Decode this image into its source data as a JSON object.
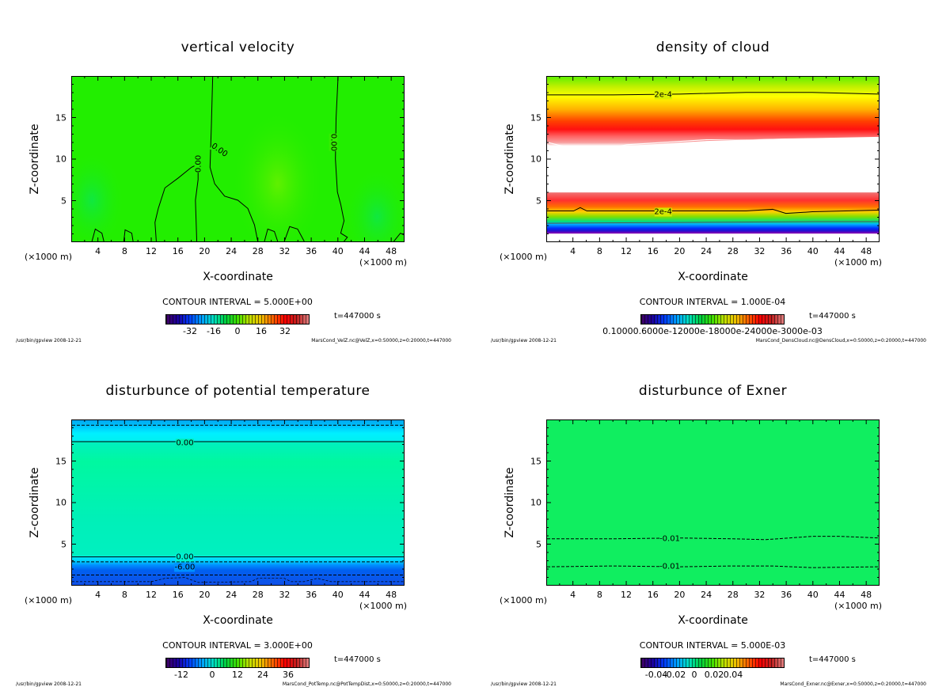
{
  "common": {
    "ylabel": "Z-coordinate",
    "xlabel": "X-coordinate",
    "xunit_left": "(×1000 m)",
    "xunit_right": "(×1000 m)",
    "footer_left": "/usr/bin/gpview  2008-12-21",
    "time": "t=447000  s"
  },
  "panels": [
    {
      "title": "vertical velocity",
      "contour_interval": "CONTOUR INTERVAL = 5.000E+00",
      "footer_right": "MarsCond_VelZ.nc@VelZ,x=0:50000,z=0:20000,t=447000",
      "colorbar_labels": [
        "-32",
        "-16",
        "0",
        "16",
        "32"
      ],
      "contour_labels": [
        "0.00",
        "0.00",
        "0.00"
      ]
    },
    {
      "title": "density of cloud",
      "contour_interval": "CONTOUR INTERVAL = 1.000E-04",
      "footer_right": "MarsCond_DensCloud.nc@DensCloud,x=0:50000,z=0:20000,t=447000",
      "colorbar_labels": [
        "0.10000.6000e-12000e-18000e-24000e-3000e-03"
      ],
      "contour_labels": [
        "2e-4",
        "2e-4"
      ]
    },
    {
      "title": "disturbunce of potential temperature",
      "contour_interval": "CONTOUR INTERVAL = 3.000E+00",
      "footer_right": "MarsCond_PotTemp.nc@PotTempDist,x=0:50000,z=0:20000,t=447000",
      "colorbar_labels": [
        "-12",
        "0",
        "12",
        "24",
        "36"
      ],
      "contour_labels": [
        "0.00",
        "0.00",
        "-6.00"
      ]
    },
    {
      "title": "disturbunce of Exner",
      "contour_interval": "CONTOUR INTERVAL = 5.000E-03",
      "footer_right": "MarsCond_Exner.nc@Exner,x=0:50000,z=0:20000,t=447000",
      "colorbar_labels": [
        "-0.04",
        "-0.02",
        "0",
        "0.02",
        "0.04"
      ],
      "contour_labels": [
        "-0.01",
        "-0.01"
      ]
    }
  ],
  "chart_data": [
    {
      "type": "heatmap",
      "title": "vertical velocity",
      "xlabel": "X-coordinate (×1000 m)",
      "ylabel": "Z-coordinate",
      "xlim": [
        0,
        50
      ],
      "ylim": [
        0,
        20
      ],
      "xticks": [
        4,
        8,
        12,
        16,
        20,
        24,
        28,
        32,
        36,
        40,
        44,
        48
      ],
      "yticks": [
        5,
        10,
        15
      ],
      "contour_interval": 5.0,
      "colorbar_range": [
        -40,
        40
      ],
      "contours": [
        0.0
      ]
    },
    {
      "type": "heatmap",
      "title": "density of cloud",
      "xlabel": "X-coordinate (×1000 m)",
      "ylabel": "Z-coordinate",
      "xlim": [
        0,
        50
      ],
      "ylim": [
        0,
        20
      ],
      "xticks": [
        4,
        8,
        12,
        16,
        20,
        24,
        28,
        32,
        36,
        40,
        44,
        48
      ],
      "yticks": [
        5,
        10,
        15
      ],
      "contour_interval": 0.0001,
      "contours": [
        0.0002
      ]
    },
    {
      "type": "heatmap",
      "title": "disturbunce of potential temperature",
      "xlabel": "X-coordinate (×1000 m)",
      "ylabel": "Z-coordinate",
      "xlim": [
        0,
        50
      ],
      "ylim": [
        0,
        20
      ],
      "xticks": [
        4,
        8,
        12,
        16,
        20,
        24,
        28,
        32,
        36,
        40,
        44,
        48
      ],
      "yticks": [
        5,
        10,
        15
      ],
      "contour_interval": 3.0,
      "colorbar_range": [
        -18,
        42
      ],
      "contours": [
        0.0,
        -6.0
      ]
    },
    {
      "type": "heatmap",
      "title": "disturbunce of Exner",
      "xlabel": "X-coordinate (×1000 m)",
      "ylabel": "Z-coordinate",
      "xlim": [
        0,
        50
      ],
      "ylim": [
        0,
        20
      ],
      "xticks": [
        4,
        8,
        12,
        16,
        20,
        24,
        28,
        32,
        36,
        40,
        44,
        48
      ],
      "yticks": [
        5,
        10,
        15
      ],
      "contour_interval": 0.005,
      "colorbar_range": [
        -0.05,
        0.05
      ],
      "contours": [
        -0.01
      ]
    }
  ]
}
